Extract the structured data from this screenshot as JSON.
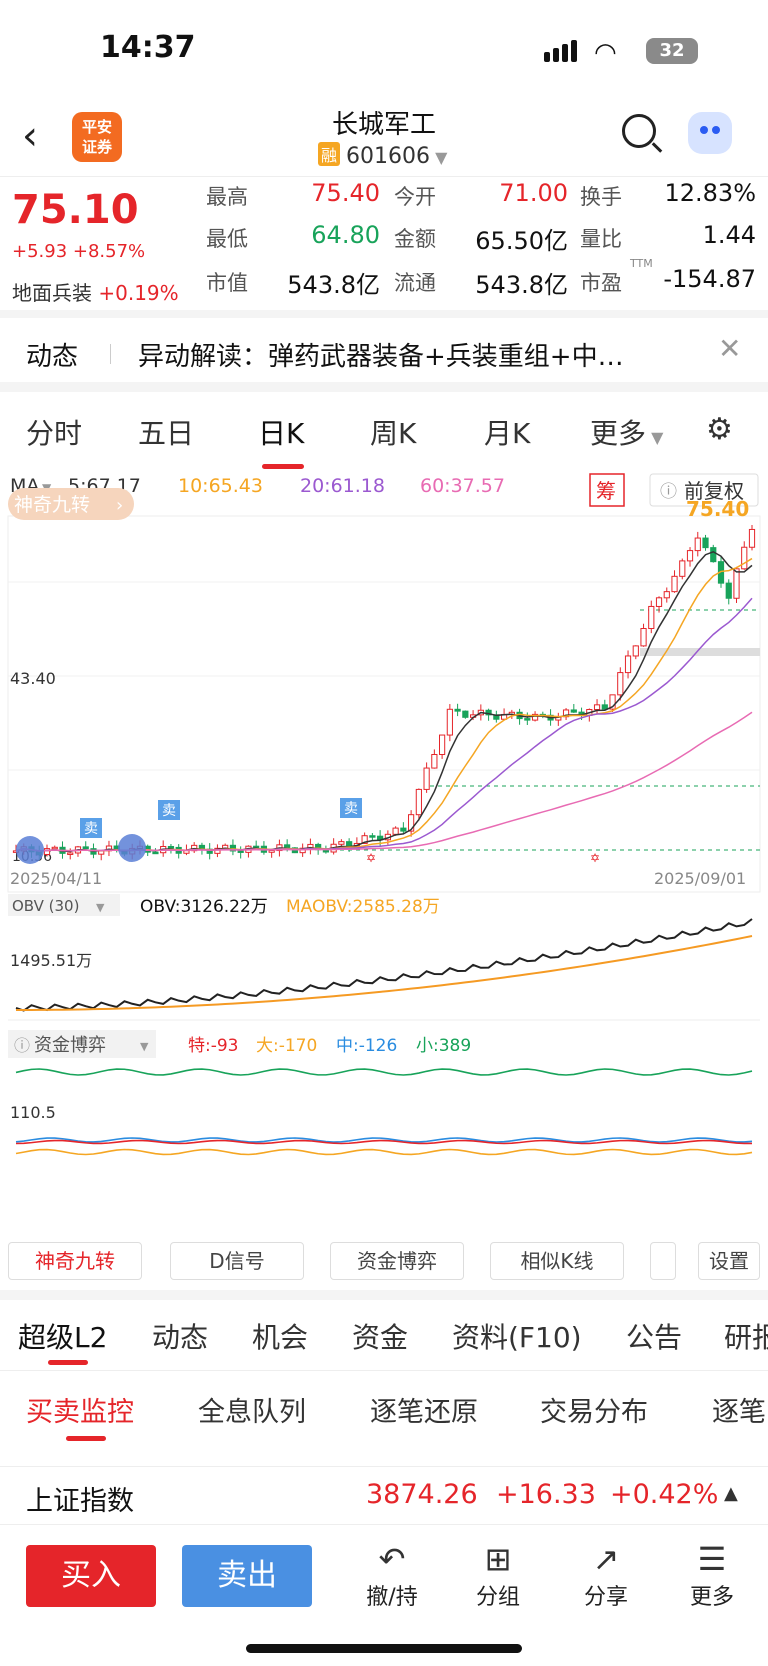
{
  "status": {
    "time": "14:37",
    "battery": "32"
  },
  "header": {
    "title": "长城军工",
    "code": "601606",
    "rong": "融",
    "logo": "平安\n证券"
  },
  "quote": {
    "price": "75.10",
    "change": "+5.93 +8.57%",
    "sector_name": "地面兵装",
    "sector_change": "+0.19%",
    "fields": [
      {
        "label": "最高",
        "value": "75.40"
      },
      {
        "label": "今开",
        "value": "71.00"
      },
      {
        "label": "换手",
        "value": "12.83%"
      },
      {
        "label": "最低",
        "value": "64.80"
      },
      {
        "label": "金额",
        "value": "65.50亿"
      },
      {
        "label": "量比",
        "value": "1.44"
      },
      {
        "label": "市值",
        "value": "543.8亿"
      },
      {
        "label": "流通",
        "value": "543.8亿"
      },
      {
        "label": "市盈",
        "value": "-154.87"
      }
    ],
    "ttm": "TTM"
  },
  "notice": {
    "tag": "动态",
    "text": "异动解读：弹药武器装备+兵装重组+中…"
  },
  "chart_tabs": [
    "分时",
    "五日",
    "日K",
    "周K",
    "月K",
    "更多"
  ],
  "chart": {
    "ma_label": "MA",
    "ma5": "5:67.17",
    "ma10": "10:65.43",
    "ma20": "20:61.18",
    "ma60": "60:37.57",
    "chou": "筹",
    "fuquan": "前复权",
    "jiuzhuan": "神奇九转",
    "high_label": "75.40",
    "mid_label": "43.40",
    "low_label": "10.56",
    "date_start": "2025/04/11",
    "date_end": "2025/09/01",
    "sell_label": "卖",
    "obv_title": "OBV (30)",
    "obv_value": "OBV:3126.22万",
    "maobv_value": "MAOBV:2585.28万",
    "obv_axis": "1495.51万",
    "fund_title": "资金博弈",
    "te": "特:-93",
    "da": "大:-170",
    "zhong": "中:-126",
    "xiao": "小:389",
    "fund_axis": "110.5"
  },
  "chart_data": {
    "type": "candlestick",
    "x_range": [
      "2025/04/11",
      "2025/09/01"
    ],
    "price_high": 75.4,
    "price_low": 10.56,
    "labeled_level": 43.4,
    "last_close": 75.1,
    "ma": {
      "MA5": 67.17,
      "MA10": 65.43,
      "MA20": 61.18,
      "MA60": 37.57
    },
    "obv": {
      "OBV": "3126.22万",
      "MAOBV": "2585.28万"
    },
    "fund": {
      "特": -93,
      "大": -170,
      "中": -126,
      "小": 389
    }
  },
  "feature_buttons": [
    "神奇九转",
    "D信号",
    "资金博弈",
    "相似K线",
    "设置"
  ],
  "section_tabs": [
    "超级L2",
    "动态",
    "机会",
    "资金",
    "资料(F10)",
    "公告",
    "研报"
  ],
  "sub_tabs": [
    "买卖监控",
    "全息队列",
    "逐笔还原",
    "交易分布",
    "逐笔"
  ],
  "index": {
    "name": "上证指数",
    "value": "3874.26",
    "change": "+16.33",
    "pct": "+0.42%"
  },
  "bottom": {
    "buy": "买入",
    "sell": "卖出",
    "actions": [
      "撤/持",
      "分组",
      "分享",
      "更多"
    ]
  },
  "colors": {
    "up": "#e5252a",
    "down": "#18a35a",
    "ma5": "#333333",
    "ma10": "#f5a623",
    "ma20": "#9b59d0",
    "ma60": "#e86bb3"
  }
}
